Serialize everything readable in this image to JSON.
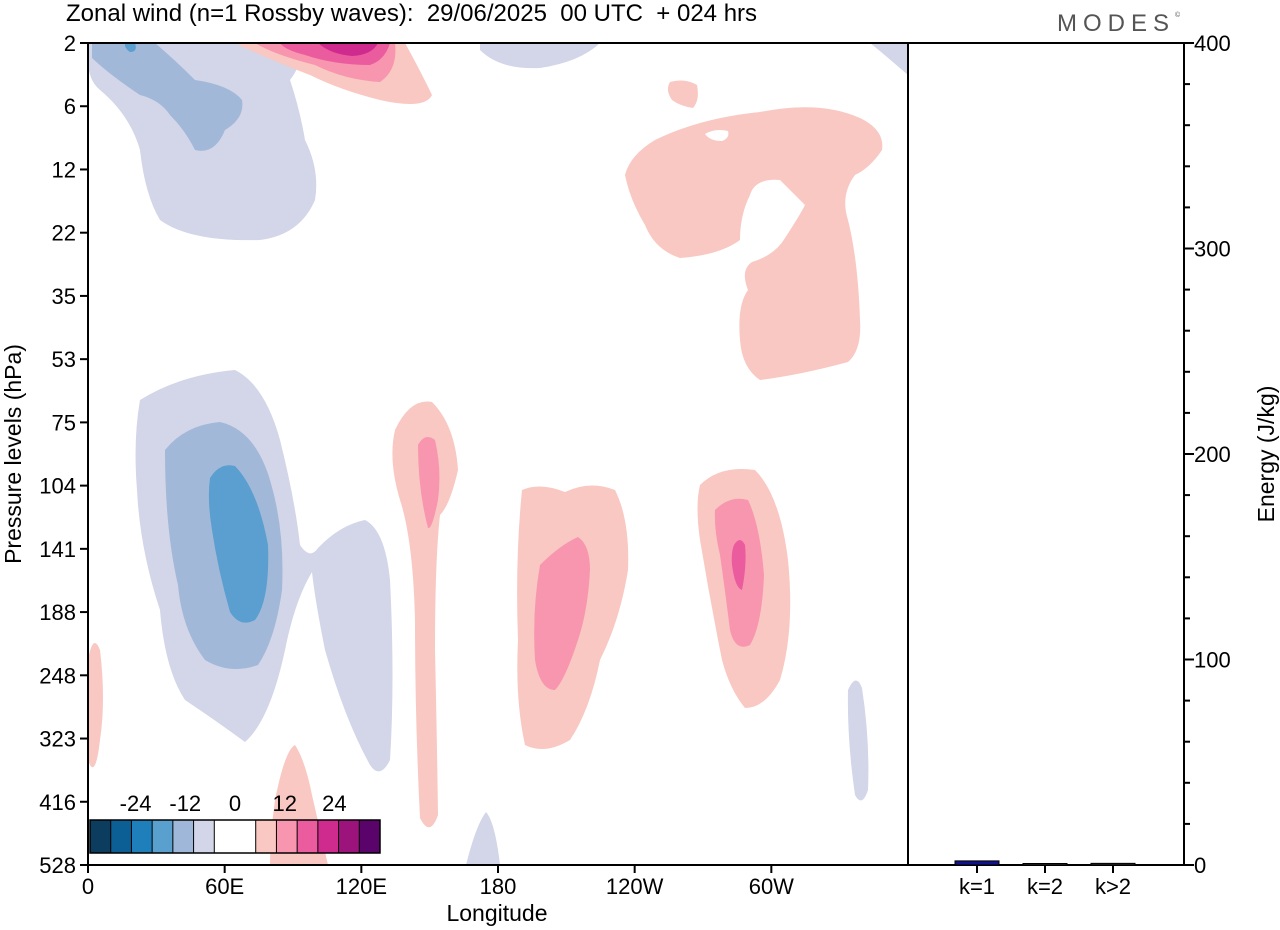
{
  "header": {
    "title": "Zonal wind (n=1 Rossby waves):  29/06/2025  00 UTC  + 024 hrs",
    "brand": "MODES",
    "brand_mark": "©"
  },
  "colors": {
    "scale": [
      "#0c3d5e",
      "#0b5f94",
      "#1f7fba",
      "#5aa0cf",
      "#9fb8d9",
      "#d3d5e8",
      "#ffffff",
      "#ffffff",
      "#f9c8c2",
      "#f796ae",
      "#eb5c9f",
      "#cf2b8e",
      "#9c137b",
      "#5a036b"
    ],
    "bar_k1": "#12128a",
    "axis": "#000000"
  },
  "chart_data": [
    {
      "type": "heatmap",
      "title": "Zonal wind (n=1 Rossby waves):  29/06/2025  00 UTC  + 024 hrs",
      "xlabel": "Longitude",
      "ylabel": "Pressure levels (hPa)",
      "x_ticks": [
        "0",
        "60E",
        "120E",
        "180",
        "120W",
        "60W"
      ],
      "x_tick_values": [
        0,
        60,
        120,
        180,
        240,
        300
      ],
      "xlim": [
        0,
        360
      ],
      "y_ticks": [
        "2",
        "6",
        "12",
        "22",
        "35",
        "53",
        "75",
        "104",
        "141",
        "188",
        "248",
        "323",
        "416",
        "528"
      ],
      "colorbar": {
        "labels": [
          "-24",
          "-12",
          "0",
          "12",
          "24"
        ],
        "label_values": [
          -24,
          -12,
          0,
          12,
          24
        ],
        "levels": [
          -30,
          -25,
          -20,
          -15,
          -10,
          -5,
          0,
          5,
          10,
          15,
          20,
          25,
          30
        ]
      },
      "features": [
        {
          "sign": "negative",
          "peak": -18,
          "lon": 60,
          "level": "141"
        },
        {
          "sign": "negative",
          "peak": -6,
          "lon": 115,
          "level": "188"
        },
        {
          "sign": "negative",
          "peak": -12,
          "lon": 45,
          "level": "6"
        },
        {
          "sign": "negative",
          "peak": -6,
          "lon": 337,
          "level": "323"
        },
        {
          "sign": "positive",
          "peak": 12,
          "lon": 150,
          "level": "104"
        },
        {
          "sign": "positive",
          "peak": 10,
          "lon": 205,
          "level": "188"
        },
        {
          "sign": "positive",
          "peak": 15,
          "lon": 283,
          "level": "141"
        },
        {
          "sign": "positive",
          "peak": 20,
          "lon": 115,
          "level": "2"
        },
        {
          "sign": "positive",
          "peak": 5,
          "lon": 285,
          "level": "22"
        },
        {
          "sign": "positive",
          "peak": 5,
          "lon": 90,
          "level": "416"
        }
      ]
    },
    {
      "type": "bar",
      "ylabel": "Energy (J/kg)",
      "categories": [
        "k=1",
        "k=2",
        "k>2"
      ],
      "values": [
        2,
        0.3,
        0.8
      ],
      "ylim": [
        0,
        400
      ],
      "y_ticks": [
        "0",
        "100",
        "200",
        "300",
        "400"
      ],
      "y_tick_values": [
        0,
        100,
        200,
        300,
        400
      ]
    }
  ]
}
